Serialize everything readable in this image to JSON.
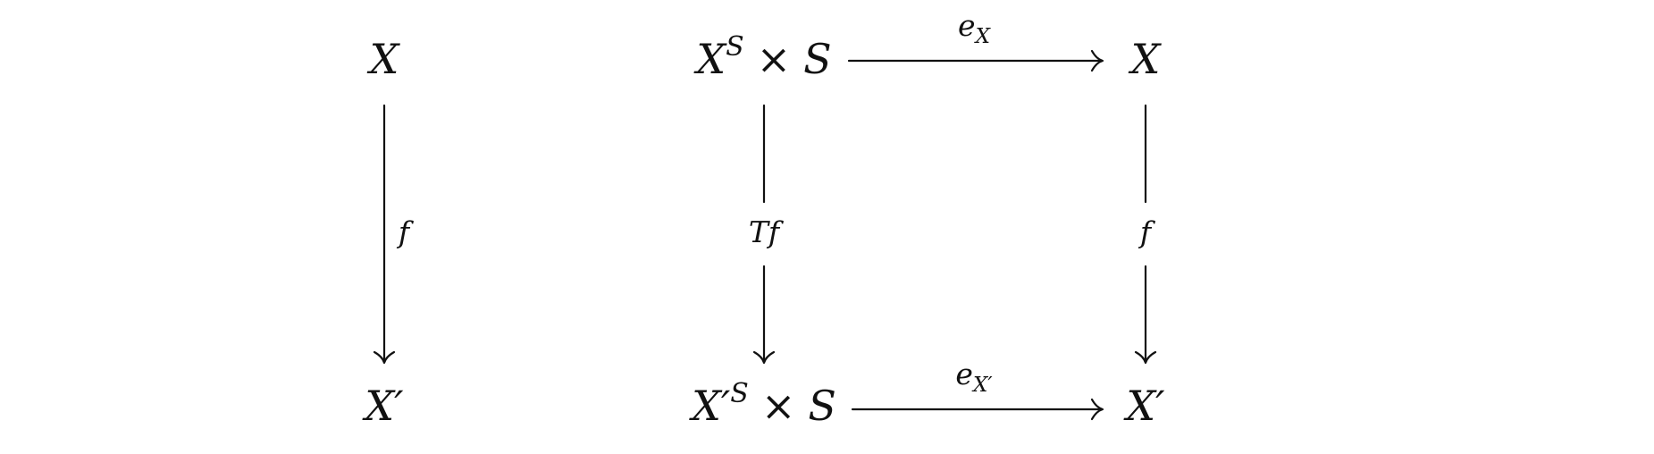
{
  "diagram": {
    "left": {
      "source": "X",
      "target": "X′",
      "arrow_label": "f"
    },
    "square": {
      "top_left": {
        "base": "X",
        "sup": "S",
        "times": "×",
        "factor": "S"
      },
      "top_right": "X",
      "bottom_left": {
        "base": "X′",
        "sup": "S",
        "times": "×",
        "factor": "S"
      },
      "bottom_right": "X′",
      "top_arrow": {
        "base": "e",
        "sub": "X"
      },
      "bottom_arrow": {
        "base": "e",
        "sub": "X′"
      },
      "left_arrow": "Tf",
      "right_arrow": "f"
    }
  }
}
